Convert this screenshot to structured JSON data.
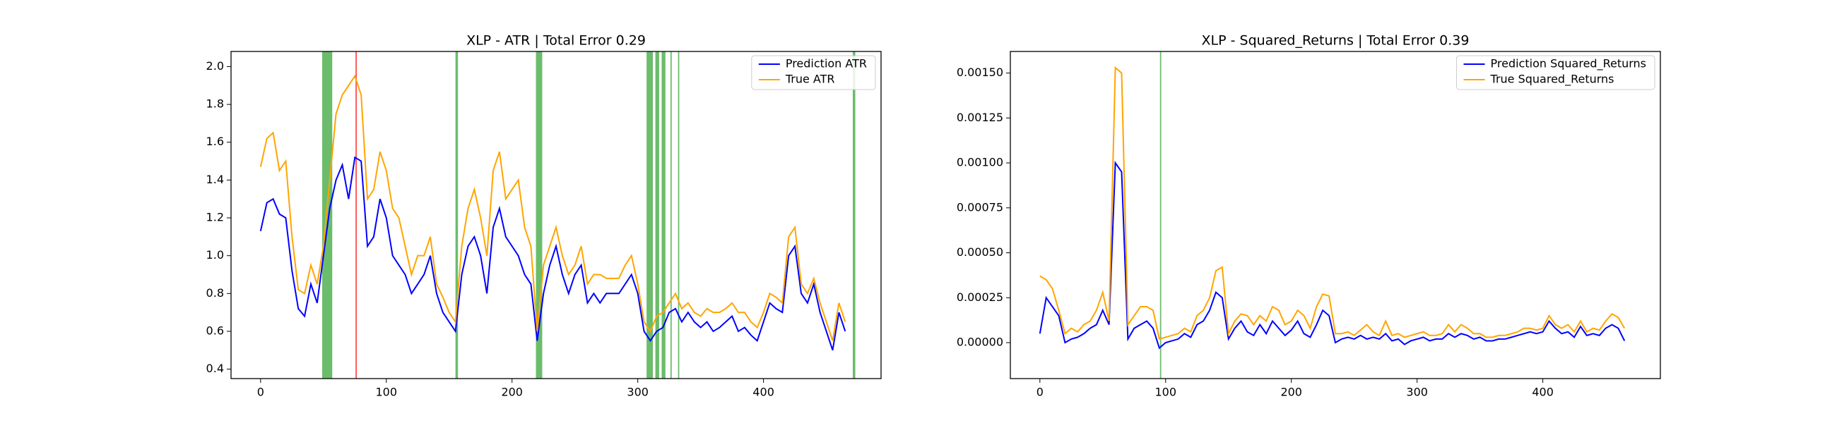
{
  "chart_data": [
    {
      "type": "line",
      "title": "XLP - ATR | Total Error 0.29",
      "x": [
        0,
        5,
        10,
        15,
        20,
        25,
        30,
        35,
        40,
        45,
        50,
        55,
        60,
        65,
        70,
        75,
        80,
        85,
        90,
        95,
        100,
        105,
        110,
        115,
        120,
        125,
        130,
        135,
        140,
        145,
        150,
        155,
        160,
        165,
        170,
        175,
        180,
        185,
        190,
        195,
        200,
        205,
        210,
        215,
        220,
        225,
        230,
        235,
        240,
        245,
        250,
        255,
        260,
        265,
        270,
        275,
        280,
        285,
        290,
        295,
        300,
        305,
        310,
        315,
        320,
        325,
        330,
        335,
        340,
        345,
        350,
        355,
        360,
        365,
        370,
        375,
        380,
        385,
        390,
        395,
        400,
        405,
        410,
        415,
        420,
        425,
        430,
        435,
        440,
        445,
        450,
        455,
        460,
        465
      ],
      "series": [
        {
          "name": "Prediction ATR",
          "color": "#0000ff",
          "values": [
            1.13,
            1.28,
            1.3,
            1.22,
            1.2,
            0.92,
            0.72,
            0.68,
            0.85,
            0.75,
            1.0,
            1.25,
            1.4,
            1.48,
            1.3,
            1.52,
            1.5,
            1.05,
            1.1,
            1.3,
            1.2,
            1.0,
            0.95,
            0.9,
            0.8,
            0.85,
            0.9,
            1.0,
            0.8,
            0.7,
            0.65,
            0.6,
            0.9,
            1.05,
            1.1,
            1.0,
            0.8,
            1.15,
            1.25,
            1.1,
            1.05,
            1.0,
            0.9,
            0.85,
            0.55,
            0.8,
            0.95,
            1.05,
            0.9,
            0.8,
            0.9,
            0.95,
            0.75,
            0.8,
            0.75,
            0.8,
            0.8,
            0.8,
            0.85,
            0.9,
            0.8,
            0.6,
            0.55,
            0.6,
            0.62,
            0.7,
            0.72,
            0.65,
            0.7,
            0.65,
            0.62,
            0.65,
            0.6,
            0.62,
            0.65,
            0.68,
            0.6,
            0.62,
            0.58,
            0.55,
            0.65,
            0.75,
            0.72,
            0.7,
            1.0,
            1.05,
            0.8,
            0.75,
            0.85,
            0.7,
            0.6,
            0.5,
            0.7,
            0.6
          ]
        },
        {
          "name": "True ATR",
          "color": "#ffa500",
          "values": [
            1.47,
            1.62,
            1.65,
            1.45,
            1.5,
            1.1,
            0.82,
            0.8,
            0.95,
            0.85,
            1.05,
            1.4,
            1.75,
            1.85,
            1.9,
            1.95,
            1.85,
            1.3,
            1.35,
            1.55,
            1.45,
            1.25,
            1.2,
            1.05,
            0.9,
            1.0,
            1.0,
            1.1,
            0.85,
            0.78,
            0.7,
            0.65,
            1.05,
            1.25,
            1.35,
            1.2,
            1.0,
            1.45,
            1.55,
            1.3,
            1.35,
            1.4,
            1.15,
            1.05,
            0.6,
            0.95,
            1.05,
            1.15,
            1.0,
            0.9,
            0.95,
            1.05,
            0.85,
            0.9,
            0.9,
            0.88,
            0.88,
            0.88,
            0.95,
            1.0,
            0.85,
            0.65,
            0.6,
            0.68,
            0.7,
            0.75,
            0.8,
            0.72,
            0.75,
            0.7,
            0.68,
            0.72,
            0.7,
            0.7,
            0.72,
            0.75,
            0.7,
            0.7,
            0.65,
            0.62,
            0.7,
            0.8,
            0.78,
            0.75,
            1.1,
            1.15,
            0.85,
            0.8,
            0.88,
            0.75,
            0.65,
            0.55,
            0.75,
            0.65
          ]
        }
      ],
      "spans": [
        {
          "x0": 49,
          "x1": 57,
          "color": "#2ca02c"
        },
        {
          "x0": 75.5,
          "x1": 76.5,
          "color": "#ff0000"
        },
        {
          "x0": 155,
          "x1": 157,
          "color": "#2ca02c"
        },
        {
          "x0": 219,
          "x1": 224,
          "color": "#2ca02c"
        },
        {
          "x0": 307,
          "x1": 312,
          "color": "#2ca02c"
        },
        {
          "x0": 314,
          "x1": 317,
          "color": "#2ca02c"
        },
        {
          "x0": 319,
          "x1": 322,
          "color": "#2ca02c"
        },
        {
          "x0": 326,
          "x1": 327,
          "color": "#2ca02c"
        },
        {
          "x0": 332,
          "x1": 333,
          "color": "#2ca02c"
        },
        {
          "x0": 471,
          "x1": 473,
          "color": "#2ca02c"
        }
      ],
      "xlim": [
        -23.5,
        493.5
      ],
      "xticks": [
        0,
        100,
        200,
        300,
        400
      ],
      "ylim": [
        0.35,
        2.08
      ],
      "yticks": [
        0.4,
        0.6,
        0.8,
        {
          "value": 1,
          "label": "1.0"
        },
        1.2,
        1.4,
        1.6,
        1.8,
        {
          "value": 2,
          "label": "2.0"
        }
      ],
      "legend": "upper-right"
    },
    {
      "type": "line",
      "title": "XLP - Squared_Returns | Total Error 0.39",
      "x": [
        0,
        5,
        10,
        15,
        20,
        25,
        30,
        35,
        40,
        45,
        50,
        55,
        60,
        65,
        70,
        75,
        80,
        85,
        90,
        95,
        100,
        105,
        110,
        115,
        120,
        125,
        130,
        135,
        140,
        145,
        150,
        155,
        160,
        165,
        170,
        175,
        180,
        185,
        190,
        195,
        200,
        205,
        210,
        215,
        220,
        225,
        230,
        235,
        240,
        245,
        250,
        255,
        260,
        265,
        270,
        275,
        280,
        285,
        290,
        295,
        300,
        305,
        310,
        315,
        320,
        325,
        330,
        335,
        340,
        345,
        350,
        355,
        360,
        365,
        370,
        375,
        380,
        385,
        390,
        395,
        400,
        405,
        410,
        415,
        420,
        425,
        430,
        435,
        440,
        445,
        450,
        455,
        460,
        465
      ],
      "series": [
        {
          "name": "Prediction Squared_Returns",
          "color": "#0000ff",
          "values": [
            5e-05,
            0.00025,
            0.0002,
            0.00015,
            0.0,
            2e-05,
            3e-05,
            5e-05,
            8e-05,
            0.0001,
            0.00018,
            0.0001,
            0.001,
            0.00095,
            2e-05,
            8e-05,
            0.0001,
            0.00012,
            8e-05,
            -3e-05,
            0.0,
            1e-05,
            2e-05,
            5e-05,
            3e-05,
            0.0001,
            0.00012,
            0.00018,
            0.00028,
            0.00025,
            2e-05,
            8e-05,
            0.00012,
            6e-05,
            4e-05,
            0.0001,
            5e-05,
            0.00012,
            8e-05,
            4e-05,
            7e-05,
            0.00012,
            5e-05,
            3e-05,
            0.0001,
            0.00018,
            0.00015,
            0.0,
            2e-05,
            3e-05,
            2e-05,
            4e-05,
            2e-05,
            3e-05,
            2e-05,
            5e-05,
            1e-05,
            2e-05,
            -1e-05,
            1e-05,
            2e-05,
            3e-05,
            1e-05,
            2e-05,
            2e-05,
            5e-05,
            3e-05,
            5e-05,
            4e-05,
            2e-05,
            3e-05,
            1e-05,
            1e-05,
            2e-05,
            2e-05,
            3e-05,
            4e-05,
            5e-05,
            6e-05,
            5e-05,
            6e-05,
            0.00012,
            8e-05,
            5e-05,
            6e-05,
            3e-05,
            9e-05,
            4e-05,
            5e-05,
            4e-05,
            8e-05,
            0.0001,
            8e-05,
            1e-05
          ]
        },
        {
          "name": "True Squared_Returns",
          "color": "#ffa500",
          "values": [
            0.00037,
            0.00035,
            0.0003,
            0.00018,
            5e-05,
            8e-05,
            6e-05,
            0.0001,
            0.00012,
            0.00018,
            0.00028,
            0.00012,
            0.00153,
            0.0015,
            0.0001,
            0.00015,
            0.0002,
            0.0002,
            0.00018,
            2e-05,
            3e-05,
            4e-05,
            5e-05,
            8e-05,
            6e-05,
            0.00015,
            0.00018,
            0.00025,
            0.0004,
            0.00042,
            5e-05,
            0.00012,
            0.00016,
            0.00015,
            0.0001,
            0.00015,
            0.00012,
            0.0002,
            0.00018,
            0.0001,
            0.00012,
            0.00018,
            0.00015,
            8e-05,
            0.0002,
            0.00027,
            0.00026,
            5e-05,
            5e-05,
            6e-05,
            4e-05,
            7e-05,
            0.0001,
            6e-05,
            4e-05,
            0.00012,
            4e-05,
            5e-05,
            3e-05,
            4e-05,
            5e-05,
            6e-05,
            4e-05,
            4e-05,
            5e-05,
            0.0001,
            6e-05,
            0.0001,
            8e-05,
            5e-05,
            5e-05,
            3e-05,
            3e-05,
            4e-05,
            4e-05,
            5e-05,
            6e-05,
            8e-05,
            8e-05,
            7e-05,
            8e-05,
            0.00015,
            0.0001,
            8e-05,
            0.0001,
            6e-05,
            0.00012,
            6e-05,
            8e-05,
            7e-05,
            0.00012,
            0.00016,
            0.00014,
            8e-05
          ]
        }
      ],
      "spans": [
        {
          "x0": 95.5,
          "x1": 96.5,
          "color": "#2ca02c"
        }
      ],
      "xlim": [
        -23.5,
        493.5
      ],
      "xticks": [
        0,
        100,
        200,
        300,
        400
      ],
      "ylim": [
        -0.0002,
        0.00162
      ],
      "yticks": [
        {
          "value": 0,
          "label": "0.00000"
        },
        {
          "value": 0.00025,
          "label": "0.00025"
        },
        {
          "value": 0.0005,
          "label": "0.00050"
        },
        {
          "value": 0.00075,
          "label": "0.00075"
        },
        {
          "value": 0.001,
          "label": "0.00100"
        },
        {
          "value": 0.00125,
          "label": "0.00125"
        },
        {
          "value": 0.0015,
          "label": "0.00150"
        }
      ],
      "legend": "upper-right"
    }
  ]
}
